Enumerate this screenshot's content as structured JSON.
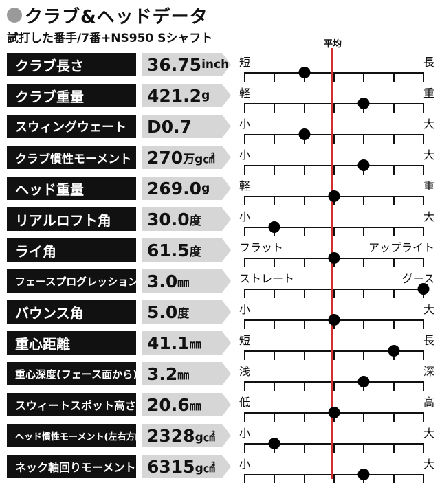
{
  "header": {
    "title": "クラブ&ヘッドデータ",
    "subtitle": "試打した番手/7番+NS950 Sシャフト",
    "average_label": "平均",
    "accent_color": "#d32f2f"
  },
  "scale": {
    "min": 1,
    "max": 7,
    "average": 4
  },
  "rows": [
    {
      "label": "クラブ長さ",
      "value": "36.75",
      "unit": "inch",
      "left": "短",
      "right": "長",
      "level": 3
    },
    {
      "label": "クラブ重量",
      "value": "421.2",
      "unit": "g",
      "left": "軽",
      "right": "重",
      "level": 5
    },
    {
      "label": "スウィングウェート",
      "value": "D0.7",
      "unit": "",
      "left": "小",
      "right": "大",
      "level": 3
    },
    {
      "label": "クラブ慣性モーメント",
      "value": "270",
      "unit": "万g㎠",
      "left": "小",
      "right": "大",
      "level": 5
    },
    {
      "label": "ヘッド重量",
      "value": "269.0",
      "unit": "g",
      "left": "軽",
      "right": "重",
      "level": 4
    },
    {
      "label": "リアルロフト角",
      "value": "30.0",
      "unit": "度",
      "left": "小",
      "right": "大",
      "level": 2
    },
    {
      "label": "ライ角",
      "value": "61.5",
      "unit": "度",
      "left": "フラット",
      "right": "アップライト",
      "level": 4
    },
    {
      "label": "フェースプログレッション",
      "value": "3.0",
      "unit": "㎜",
      "left": "ストレート",
      "right": "グース",
      "level": 7
    },
    {
      "label": "バウンス角",
      "value": "5.0",
      "unit": "度",
      "left": "小",
      "right": "大",
      "level": 4
    },
    {
      "label": "重心距離",
      "value": "41.1",
      "unit": "㎜",
      "left": "短",
      "right": "長",
      "level": 6
    },
    {
      "label": "重心深度(フェース面から)",
      "value": "3.2",
      "unit": "㎜",
      "left": "浅",
      "right": "深",
      "level": 5
    },
    {
      "label": "スウィートスポット高さ",
      "value": "20.6",
      "unit": "㎜",
      "left": "低",
      "right": "高",
      "level": 4
    },
    {
      "label": "ヘッド慣性モーメント(左右方向)",
      "value": "2328",
      "unit": "g㎠",
      "left": "小",
      "right": "大",
      "level": 2
    },
    {
      "label": "ネック軸回りモーメント",
      "value": "6315",
      "unit": "g㎠",
      "left": "小",
      "right": "大",
      "level": 5
    }
  ]
}
